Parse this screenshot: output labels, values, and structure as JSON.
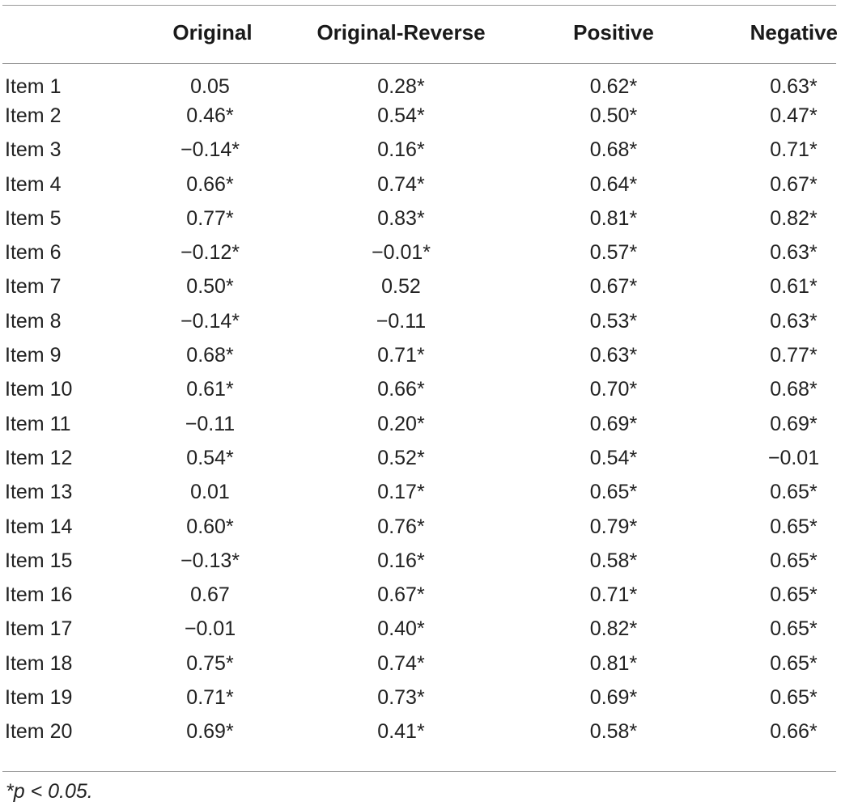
{
  "table": {
    "headers": [
      "",
      "Original",
      "Original-Reverse",
      "Positive",
      "Negative"
    ],
    "rows": [
      {
        "item": "Item 1",
        "original": "0.05",
        "original_reverse": "0.28*",
        "positive": "0.62*",
        "negative": "0.63*"
      },
      {
        "item": "Item 2",
        "original": "0.46*",
        "original_reverse": "0.54*",
        "positive": "0.50*",
        "negative": "0.47*"
      },
      {
        "item": "Item 3",
        "original": "−0.14*",
        "original_reverse": "0.16*",
        "positive": "0.68*",
        "negative": "0.71*"
      },
      {
        "item": "Item 4",
        "original": "0.66*",
        "original_reverse": "0.74*",
        "positive": "0.64*",
        "negative": "0.67*"
      },
      {
        "item": "Item 5",
        "original": "0.77*",
        "original_reverse": "0.83*",
        "positive": "0.81*",
        "negative": "0.82*"
      },
      {
        "item": "Item 6",
        "original": "−0.12*",
        "original_reverse": "−0.01*",
        "positive": "0.57*",
        "negative": "0.63*"
      },
      {
        "item": "Item 7",
        "original": "0.50*",
        "original_reverse": "0.52",
        "positive": "0.67*",
        "negative": "0.61*"
      },
      {
        "item": "Item 8",
        "original": "−0.14*",
        "original_reverse": "−0.11",
        "positive": "0.53*",
        "negative": "0.63*"
      },
      {
        "item": "Item 9",
        "original": "0.68*",
        "original_reverse": "0.71*",
        "positive": "0.63*",
        "negative": "0.77*"
      },
      {
        "item": "Item 10",
        "original": "0.61*",
        "original_reverse": "0.66*",
        "positive": "0.70*",
        "negative": "0.68*"
      },
      {
        "item": "Item 11",
        "original": "−0.11",
        "original_reverse": "0.20*",
        "positive": "0.69*",
        "negative": "0.69*"
      },
      {
        "item": "Item 12",
        "original": "0.54*",
        "original_reverse": "0.52*",
        "positive": "0.54*",
        "negative": "−0.01"
      },
      {
        "item": "Item 13",
        "original": "0.01",
        "original_reverse": "0.17*",
        "positive": "0.65*",
        "negative": "0.65*"
      },
      {
        "item": "Item 14",
        "original": "0.60*",
        "original_reverse": "0.76*",
        "positive": "0.79*",
        "negative": "0.65*"
      },
      {
        "item": "Item 15",
        "original": "−0.13*",
        "original_reverse": "0.16*",
        "positive": "0.58*",
        "negative": "0.65*"
      },
      {
        "item": "Item 16",
        "original": "0.67",
        "original_reverse": "0.67*",
        "positive": "0.71*",
        "negative": "0.65*"
      },
      {
        "item": "Item 17",
        "original": "−0.01",
        "original_reverse": "0.40*",
        "positive": "0.82*",
        "negative": "0.65*"
      },
      {
        "item": "Item 18",
        "original": "0.75*",
        "original_reverse": "0.74*",
        "positive": "0.81*",
        "negative": "0.65*"
      },
      {
        "item": "Item 19",
        "original": "0.71*",
        "original_reverse": "0.73*",
        "positive": "0.69*",
        "negative": "0.65*"
      },
      {
        "item": "Item 20",
        "original": "0.69*",
        "original_reverse": "0.41*",
        "positive": "0.58*",
        "negative": "0.66*"
      }
    ]
  },
  "footnote": "*p < 0.05."
}
